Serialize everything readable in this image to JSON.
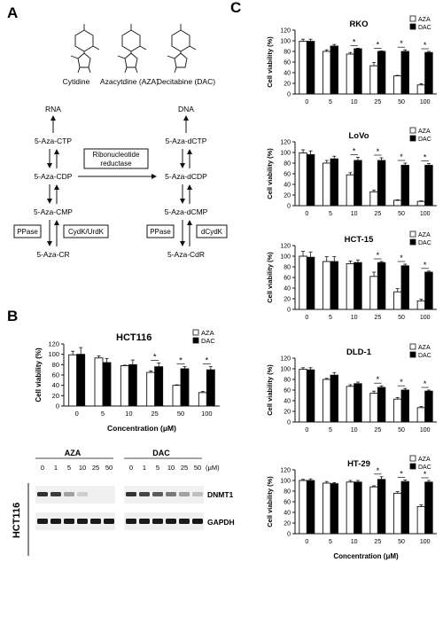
{
  "panel_labels": {
    "a": "A",
    "b": "B",
    "c": "C"
  },
  "panel_a": {
    "structures": [
      "Cytidine",
      "Azacytdine (AZA)",
      "Decitabine (DAC)"
    ],
    "rna": "RNA",
    "dna": "DNA",
    "left": [
      "5-Aza-CTP",
      "5-Aza-CDP",
      "5-Aza-CMP",
      "5-Aza-CR"
    ],
    "right": [
      "5-Aza-dCTP",
      "5-Aza-dCDP",
      "5-Aza-dCMP",
      "5-Aza-CdR"
    ],
    "enzyme_ribo_1": "Ribonucleotide",
    "enzyme_ribo_2": "reductase",
    "ppase": "PPase",
    "cydk_urdk": "CydK/UrdK",
    "dcydk": "dCydK"
  },
  "legend": {
    "aza": "AZA",
    "dac": "DAC"
  },
  "colors": {
    "aza": "#ffffff",
    "dac": "#000000",
    "stroke": "#000000"
  },
  "western": {
    "cell_line": "HCT116",
    "aza_label": "AZA",
    "dac_label": "DAC",
    "doses": [
      "0",
      "1",
      "5",
      "10",
      "25",
      "50"
    ],
    "unit": "(μM)",
    "proteins": [
      "DNMT1",
      "GAPDH"
    ],
    "dnmt1_aza": [
      0.9,
      0.85,
      0.35,
      0.12,
      0.0,
      0.0
    ],
    "dnmt1_dac": [
      0.9,
      0.8,
      0.7,
      0.55,
      0.35,
      0.2
    ]
  },
  "chart_data": [
    {
      "type": "bar",
      "id": "hct116",
      "title": "HCT116",
      "xlabel": "Concentration (μM)",
      "ylabel": "Cell viability (%)",
      "categories": [
        "0",
        "5",
        "10",
        "25",
        "50",
        "100"
      ],
      "ylim": [
        0,
        120
      ],
      "yticks": [
        0,
        20,
        40,
        60,
        80,
        100,
        120
      ],
      "series": [
        {
          "name": "AZA",
          "values": [
            99,
            93,
            78,
            65,
            40,
            26
          ],
          "errors": [
            7,
            4,
            1,
            3,
            1,
            2
          ]
        },
        {
          "name": "DAC",
          "values": [
            100,
            84,
            80,
            76,
            72,
            70
          ],
          "errors": [
            13,
            8,
            9,
            7,
            4,
            6
          ]
        }
      ],
      "significance": [
        "",
        "",
        "",
        "*",
        "*",
        "*"
      ]
    },
    {
      "type": "bar",
      "id": "rko",
      "title": "RKO",
      "xlabel": "",
      "ylabel": "Cell viability (%)",
      "categories": [
        "0",
        "5",
        "10",
        "25",
        "50",
        "100"
      ],
      "ylim": [
        0,
        120
      ],
      "yticks": [
        0,
        20,
        40,
        60,
        80,
        100,
        120
      ],
      "series": [
        {
          "name": "AZA",
          "values": [
            99,
            80,
            75,
            53,
            34,
            17
          ],
          "errors": [
            4,
            3,
            3,
            6,
            1,
            2
          ]
        },
        {
          "name": "DAC",
          "values": [
            99,
            90,
            85,
            80,
            80,
            78
          ],
          "errors": [
            4,
            3,
            1,
            1,
            3,
            2
          ]
        }
      ],
      "significance": [
        "",
        "",
        "*",
        "*",
        "*",
        "*"
      ]
    },
    {
      "type": "bar",
      "id": "lovo",
      "title": "LoVo",
      "xlabel": "",
      "ylabel": "Cell viability (%)",
      "categories": [
        "0",
        "5",
        "10",
        "25",
        "50",
        "100"
      ],
      "ylim": [
        0,
        120
      ],
      "yticks": [
        0,
        20,
        40,
        60,
        80,
        100,
        120
      ],
      "series": [
        {
          "name": "AZA",
          "values": [
            99,
            80,
            58,
            26,
            10,
            8
          ],
          "errors": [
            6,
            5,
            4,
            3,
            1,
            1
          ]
        },
        {
          "name": "DAC",
          "values": [
            96,
            88,
            85,
            85,
            76,
            76
          ],
          "errors": [
            7,
            5,
            6,
            5,
            4,
            3
          ]
        }
      ],
      "significance": [
        "",
        "",
        "*",
        "*",
        "*",
        "*"
      ]
    },
    {
      "type": "bar",
      "id": "hct15",
      "title": "HCT-15",
      "xlabel": "",
      "ylabel": "Cell viability (%)",
      "categories": [
        "0",
        "5",
        "10",
        "25",
        "50",
        "100"
      ],
      "ylim": [
        0,
        120
      ],
      "yticks": [
        0,
        20,
        40,
        60,
        80,
        100,
        120
      ],
      "series": [
        {
          "name": "AZA",
          "values": [
            100,
            90,
            86,
            62,
            33,
            16
          ],
          "errors": [
            9,
            9,
            5,
            8,
            6,
            3
          ]
        },
        {
          "name": "DAC",
          "values": [
            98,
            90,
            88,
            88,
            82,
            70
          ],
          "errors": [
            10,
            9,
            5,
            2,
            3,
            2
          ]
        }
      ],
      "significance": [
        "",
        "",
        "",
        "*",
        "*",
        "*"
      ]
    },
    {
      "type": "bar",
      "id": "dld1",
      "title": "DLD-1",
      "xlabel": "",
      "ylabel": "Cell viability (%)",
      "categories": [
        "0",
        "5",
        "10",
        "25",
        "50",
        "100"
      ],
      "ylim": [
        0,
        120
      ],
      "yticks": [
        0,
        20,
        40,
        60,
        80,
        100,
        120
      ],
      "series": [
        {
          "name": "AZA",
          "values": [
            99,
            80,
            67,
            54,
            43,
            27
          ],
          "errors": [
            3,
            2,
            3,
            4,
            3,
            2
          ]
        },
        {
          "name": "DAC",
          "values": [
            98,
            88,
            72,
            65,
            60,
            58
          ],
          "errors": [
            4,
            5,
            3,
            3,
            3,
            2
          ]
        }
      ],
      "significance": [
        "",
        "",
        "",
        "*",
        "*",
        "*"
      ]
    },
    {
      "type": "bar",
      "id": "ht29",
      "title": "HT-29",
      "xlabel": "Concentration (μM)",
      "ylabel": "Cell viability (%)",
      "categories": [
        "0",
        "5",
        "10",
        "25",
        "50",
        "100"
      ],
      "ylim": [
        0,
        120
      ],
      "yticks": [
        0,
        20,
        40,
        60,
        80,
        100,
        120
      ],
      "series": [
        {
          "name": "AZA",
          "values": [
            100,
            95,
            97,
            88,
            76,
            51
          ],
          "errors": [
            2,
            3,
            3,
            2,
            3,
            3
          ]
        },
        {
          "name": "DAC",
          "values": [
            100,
            94,
            97,
            102,
            98,
            97
          ],
          "errors": [
            3,
            2,
            3,
            5,
            3,
            3
          ]
        }
      ],
      "significance": [
        "",
        "",
        "",
        "*",
        "*",
        "*"
      ]
    }
  ]
}
